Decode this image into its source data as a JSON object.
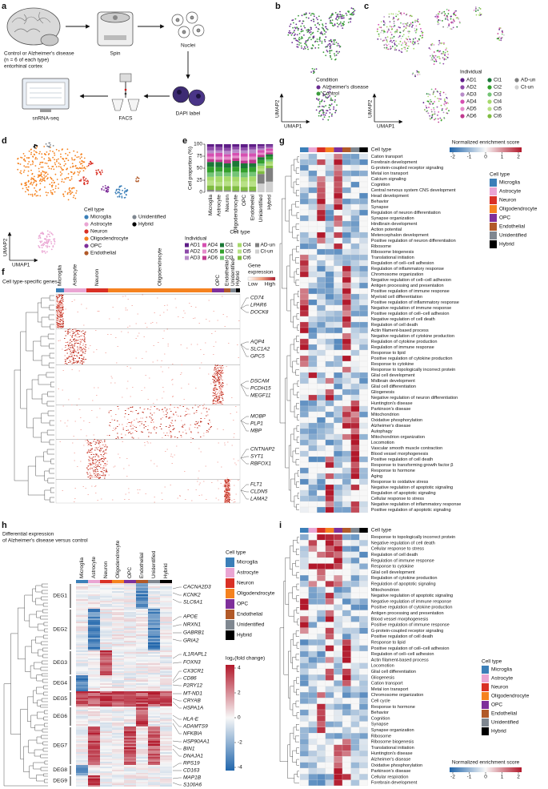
{
  "cell_types": [
    {
      "name": "Microglia",
      "color": "#3b7fb8"
    },
    {
      "name": "Astrocyte",
      "color": "#eaa5d3"
    },
    {
      "name": "Neuron",
      "color": "#d93025"
    },
    {
      "name": "Oligodendrocyte",
      "color": "#f5821f"
    },
    {
      "name": "OPC",
      "color": "#7e2f9a"
    },
    {
      "name": "Endothelial",
      "color": "#b15928"
    },
    {
      "name": "Unidentified",
      "color": "#7f8790"
    },
    {
      "name": "Hybrid",
      "color": "#000000"
    }
  ],
  "panel_a": {
    "letter": "a",
    "source": "Control or Alzheimer's disease",
    "n": "(n = 6 of each type)",
    "region": "entorhinal cortex",
    "spin": "Spin",
    "nuclei": "Nuclei",
    "dapi": "DAPI label",
    "facs": "FACS",
    "seq": "snRNA-seq"
  },
  "panel_b": {
    "letter": "b",
    "x_label": "UMAP1",
    "y_label": "UMAP2",
    "legend_title": "Condition",
    "legend": [
      {
        "name": "Alzheimer's disease",
        "color": "#6a2c91"
      },
      {
        "name": "Control",
        "color": "#3c9b3c"
      }
    ]
  },
  "panel_c": {
    "letter": "c",
    "x_label": "UMAP1",
    "y_label": "UMAP2",
    "legend_title": "Individual",
    "legend": [
      {
        "name": "AD1",
        "color": "#5e1d87"
      },
      {
        "name": "AD2",
        "color": "#8e4aa9"
      },
      {
        "name": "AD3",
        "color": "#b88cc9"
      },
      {
        "name": "AD4",
        "color": "#d64fb1"
      },
      {
        "name": "AD5",
        "color": "#e58ccb"
      },
      {
        "name": "AD6",
        "color": "#c0398f"
      },
      {
        "name": "Ct1",
        "color": "#1b7837"
      },
      {
        "name": "Ct2",
        "color": "#33a02c"
      },
      {
        "name": "Ct3",
        "color": "#74c476"
      },
      {
        "name": "Ct4",
        "color": "#a6d96a"
      },
      {
        "name": "Ct5",
        "color": "#b8e186"
      },
      {
        "name": "Ct6",
        "color": "#7fbc41"
      },
      {
        "name": "AD-un",
        "color": "#808080"
      },
      {
        "name": "Ct-un",
        "color": "#d0d0d0"
      }
    ]
  },
  "panel_d": {
    "letter": "d",
    "x_label": "UMAP1",
    "y_label": "UMAP2",
    "legend_title": "Cell type"
  },
  "chart_data": {
    "type": "bar",
    "letter": "e",
    "x_label": "Cell type",
    "y_label": "Cell proportion (%)",
    "legend_title": "Individual",
    "categories": [
      "Microglia",
      "Astrocyte",
      "Neuron",
      "Oligodendrocyte",
      "OPC",
      "Endothelial",
      "Unidentified",
      "Hybrid"
    ],
    "series": [
      {
        "name": "AD1",
        "color": "#5e1d87",
        "values": [
          5,
          6,
          8,
          5,
          7,
          6,
          4,
          3
        ]
      },
      {
        "name": "AD2",
        "color": "#8e4aa9",
        "values": [
          8,
          7,
          6,
          6,
          6,
          5,
          5,
          4
        ]
      },
      {
        "name": "AD3",
        "color": "#b88cc9",
        "values": [
          6,
          5,
          7,
          7,
          6,
          8,
          3,
          2
        ]
      },
      {
        "name": "AD4",
        "color": "#d64fb1",
        "values": [
          7,
          8,
          5,
          6,
          7,
          7,
          6,
          5
        ]
      },
      {
        "name": "AD5",
        "color": "#e58ccb",
        "values": [
          5,
          6,
          6,
          5,
          8,
          6,
          4,
          3
        ]
      },
      {
        "name": "AD6",
        "color": "#c0398f",
        "values": [
          6,
          5,
          8,
          6,
          6,
          8,
          5,
          4
        ]
      },
      {
        "name": "Ct1",
        "color": "#1b7837",
        "values": [
          10,
          11,
          9,
          12,
          10,
          8,
          6,
          5
        ]
      },
      {
        "name": "Ct2",
        "color": "#33a02c",
        "values": [
          12,
          9,
          10,
          10,
          9,
          10,
          7,
          6
        ]
      },
      {
        "name": "Ct3",
        "color": "#74c476",
        "values": [
          9,
          10,
          8,
          11,
          10,
          9,
          5,
          4
        ]
      },
      {
        "name": "Ct4",
        "color": "#a6d96a",
        "values": [
          8,
          12,
          11,
          10,
          9,
          11,
          6,
          5
        ]
      },
      {
        "name": "Ct5",
        "color": "#b8e186",
        "values": [
          10,
          8,
          9,
          9,
          11,
          10,
          5,
          4
        ]
      },
      {
        "name": "Ct6",
        "color": "#7fbc41",
        "values": [
          9,
          9,
          9,
          10,
          8,
          9,
          6,
          5
        ]
      },
      {
        "name": "AD-un",
        "color": "#808080",
        "values": [
          3,
          2,
          2,
          2,
          2,
          2,
          20,
          28
        ]
      },
      {
        "name": "Ct-un",
        "color": "#d0d0d0",
        "values": [
          2,
          2,
          2,
          1,
          1,
          1,
          18,
          22
        ]
      }
    ],
    "ylim": [
      0,
      100
    ],
    "yticks": [
      0,
      25,
      50,
      75,
      100
    ]
  },
  "panel_f": {
    "letter": "f",
    "title": "Cell type-specific genes",
    "legend_title": [
      "Gene",
      "expression"
    ],
    "low": "Low",
    "high": "High",
    "genes": [
      "CD74",
      "LPAR6",
      "DOCK8",
      "AQP4",
      "SLC1A2",
      "GPC5",
      "DSCAM",
      "PCDH15",
      "MEGF11",
      "MOBP",
      "PLP1",
      "MBP",
      "CNTNAP2",
      "SYT1",
      "RBFOX1",
      "FLT1",
      "CLDN5",
      "LAMA2"
    ]
  },
  "panel_g": {
    "letter": "g",
    "row_header": "Cell type",
    "colorbar_title": "Normalized enrichment score",
    "colorbar_ticks": [
      -2,
      -1,
      0,
      1,
      2
    ],
    "legend_title": "Cell type",
    "terms": [
      "Cation transport",
      "Forebrain development",
      "G-protein-coupled receptor signaling",
      "Metal ion transport",
      "Calcium signaling",
      "Cognition",
      "Central nervous system CNS development",
      "Head development",
      "Behavior",
      "Synapse",
      "Regulation of neuron differentiation",
      "Synapse organization",
      "Hindbrain development",
      "Action potential",
      "Metencephalon development",
      "Positive regulation of neuron differentiation",
      "Ribosome",
      "Ribosome biogenesis",
      "Translational initiation",
      "Regulation of cell–cell adhesion",
      "Regulation of inflammatory response",
      "Chromosome organization",
      "Negative regulation of cell–cell adhesion",
      "Antigen processing and presentation",
      "Positive regulation of immune response",
      "Myeloid cell differentiation",
      "Positive regulation of inflammatory response",
      "Negative regulation of immune response",
      "Positive regulation of cell–cell adhesion",
      "Negative regulation of cell death",
      "Regulation of cell death",
      "Actin filament-based process",
      "Negative regulation of cytokine production",
      "Regulation of cytokine production",
      "Regulation of immune response",
      "Response to lipid",
      "Positive regulation of cytokine production",
      "Response to cytokine",
      "Response to topologically incorrect protein",
      "Glial cell development",
      "Midbrain development",
      "Glial cell differentiation",
      "Gliogenesis",
      "Negative regulation of neuron differentiation",
      "Huntington's disease",
      "Parkinson's disease",
      "Mitochondrion",
      "Oxidative phosphorylation",
      "Alzheimer's disease",
      "Autophagy",
      "Mitochondrion organization",
      "Locomotion",
      "Vascular smooth muscle contraction",
      "Blood vessel morphogenesis",
      "Positive regulation of cell death",
      "Response to transforming growth factor β",
      "Response to hormone",
      "Aging",
      "Response to oxidative stress",
      "Negative regulation of apoptotic signaling",
      "Regulation of apoptotic signaling",
      "Cellular response to stress",
      "Negative regulation of inflammatory response",
      "Positive regulation of apoptotic signaling"
    ]
  },
  "panel_h": {
    "letter": "h",
    "title": [
      "Differential expression",
      "of Alzheimer's disease versus control"
    ],
    "groups": [
      "DEG1",
      "DEG2",
      "DEG3",
      "DEG4",
      "DEG5",
      "DEG6",
      "DEG7",
      "DEG8",
      "DEG9"
    ],
    "genes": [
      "CACNA2D3",
      "KCNK2",
      "SLC6A1",
      "APOE",
      "NRXN1",
      "GABRB1",
      "GRIA2",
      "IL1RAPL1",
      "FOXN3",
      "CX3CR1",
      "CD86",
      "P2RY12",
      "MT-ND1",
      "CRYAB",
      "HSPA1A",
      "HLA-E",
      "ADAMTS9",
      "NFKBIA",
      "HSP90AA1",
      "BIN1",
      "DNAJA1",
      "RPS19",
      "CD163",
      "MAP1B",
      "S100A6"
    ],
    "colorbar_title": "log₂(fold change)",
    "colorbar_ticks": [
      4,
      2,
      0,
      -2,
      -4
    ],
    "legend_title": "Cell type"
  },
  "panel_i": {
    "letter": "i",
    "row_header": "Cell type",
    "colorbar_title": "Normalized enrichment score",
    "colorbar_ticks": [
      -2,
      -1,
      0,
      1,
      2
    ],
    "legend_title": "Cell type",
    "terms": [
      "Response to topologically incorrect protein",
      "Negative regulation of cell death",
      "Cellular response to stress",
      "Regulation of cell death",
      "Regulation of immune response",
      "Response to cytokine",
      "Glial cell development",
      "Regulation of cytokine production",
      "Regulation of apoptotic signaling",
      "Mitochondrion",
      "Negative regulation of apoptotic signaling",
      "Negative regulation of immune response",
      "Positive regulation of cytokine production",
      "Antigen processing and presentation",
      "Blood vessel morphogenesis",
      "Positive regulation of immune response",
      "G-protein-coupled receptor signaling",
      "Positive regulation of cell death",
      "Response to lipid",
      "Positive regulation of cell–cell adhesion",
      "Regulation of cell–cell adhesion",
      "Actin filament-based process",
      "Locomotion",
      "Glial cell differentiation",
      "Gliogenesis",
      "Cation transport",
      "Metal ion transport",
      "Chromosome organization",
      "Cell cycle",
      "Response to hormone",
      "Behavior",
      "Cognition",
      "Synapse",
      "Synapse organization",
      "Ribosome",
      "Ribosome biogenesis",
      "Translational initiation",
      "Huntington's disease",
      "Alzheimer's disease",
      "Oxidative phosphorylation",
      "Parkinson's disease",
      "Cellular respiration",
      "Forebrain development"
    ]
  }
}
